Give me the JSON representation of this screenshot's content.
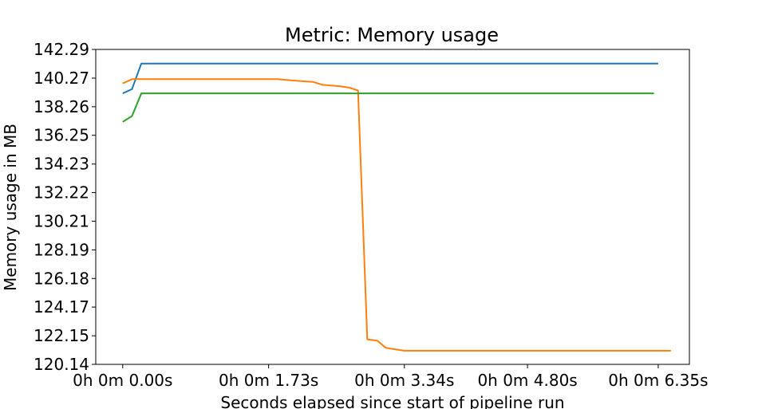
{
  "chart_data": {
    "type": "line",
    "title": "Metric: Memory usage",
    "xlabel": "Seconds elapsed since start of pipeline run",
    "ylabel": "Memory usage in MB",
    "xlim": [
      -0.32,
      6.72
    ],
    "ylim": [
      120.14,
      142.29
    ],
    "x_ticks": [
      {
        "value": 0.0,
        "label": "0h 0m 0.00s"
      },
      {
        "value": 1.73,
        "label": "0h 0m 1.73s"
      },
      {
        "value": 3.34,
        "label": "0h 0m 3.34s"
      },
      {
        "value": 4.8,
        "label": "0h 0m 4.80s"
      },
      {
        "value": 6.35,
        "label": "0h 0m 6.35s"
      }
    ],
    "y_ticks": [
      {
        "value": 120.14,
        "label": "120.14"
      },
      {
        "value": 122.15,
        "label": "122.15"
      },
      {
        "value": 124.17,
        "label": "124.17"
      },
      {
        "value": 126.18,
        "label": "126.18"
      },
      {
        "value": 128.19,
        "label": "128.19"
      },
      {
        "value": 130.21,
        "label": "130.21"
      },
      {
        "value": 132.22,
        "label": "132.22"
      },
      {
        "value": 134.23,
        "label": "134.23"
      },
      {
        "value": 136.25,
        "label": "136.25"
      },
      {
        "value": 138.26,
        "label": "138.26"
      },
      {
        "value": 140.27,
        "label": "140.27"
      },
      {
        "value": 142.29,
        "label": "142.29"
      }
    ],
    "grid": false,
    "legend": "none",
    "series": [
      {
        "color": "#1f77b4",
        "points": [
          [
            0.0,
            139.2
          ],
          [
            0.11,
            139.5
          ],
          [
            0.22,
            141.3
          ],
          [
            6.35,
            141.3
          ]
        ]
      },
      {
        "color": "#ff7f0e",
        "points": [
          [
            0.0,
            139.9
          ],
          [
            0.11,
            140.2
          ],
          [
            0.22,
            140.2
          ],
          [
            1.41,
            140.2
          ],
          [
            1.62,
            140.2
          ],
          [
            1.83,
            140.2
          ],
          [
            2.04,
            140.1
          ],
          [
            2.26,
            140.0
          ],
          [
            2.37,
            139.8
          ],
          [
            2.58,
            139.7
          ],
          [
            2.69,
            139.6
          ],
          [
            2.79,
            139.4
          ],
          [
            2.9,
            121.9
          ],
          [
            3.02,
            121.8
          ],
          [
            3.12,
            121.3
          ],
          [
            3.23,
            121.2
          ],
          [
            3.34,
            121.1
          ],
          [
            6.5,
            121.1
          ]
        ]
      },
      {
        "color": "#2ca02c",
        "points": [
          [
            0.0,
            137.2
          ],
          [
            0.11,
            137.6
          ],
          [
            0.22,
            139.2
          ],
          [
            6.3,
            139.2
          ]
        ]
      }
    ]
  }
}
